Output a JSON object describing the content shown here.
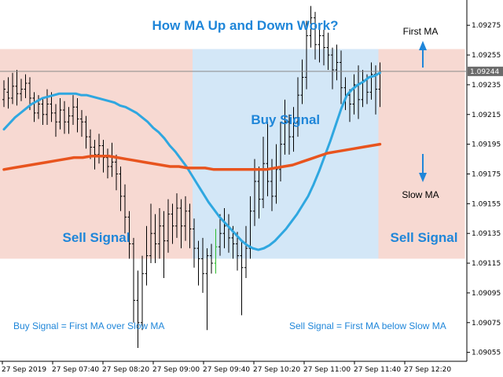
{
  "chart_data": {
    "type": "candlestick",
    "title": "How MA Up and Down Work?",
    "y_ticks": [
      "1.09275",
      "1.09255",
      "1.09235",
      "1.09215",
      "1.09195",
      "1.09175",
      "1.09155",
      "1.09135",
      "1.09115",
      "1.09095",
      "1.09075",
      "1.09055"
    ],
    "y_tick_values": [
      1.09275,
      1.09255,
      1.09235,
      1.09215,
      1.09195,
      1.09175,
      1.09155,
      1.09135,
      1.09115,
      1.09095,
      1.09075,
      1.09055
    ],
    "ylim": [
      1.09049,
      1.09292
    ],
    "x_ticks": [
      "27 Sep 2019",
      "27 Sep 07:40",
      "27 Sep 08:20",
      "27 Sep 09:00",
      "27 Sep 09:40",
      "27 Sep 10:20",
      "27 Sep 11:00",
      "27 Sep 11:40",
      "27 Sep 12:20"
    ],
    "current_price": "1.09244",
    "zones": [
      {
        "label": "Sell Signal",
        "type": "sell",
        "from_bar": 0,
        "to_bar": 44
      },
      {
        "label": "Buy Signal",
        "type": "buy",
        "from_bar": 44,
        "to_bar": 87
      },
      {
        "label": "Sell Signal",
        "type": "sell",
        "from_bar": 87,
        "to_bar": 107
      }
    ],
    "zone_price_range": [
      1.09118,
      1.09259
    ],
    "series": [
      {
        "name": "First MA",
        "color": "#2fa7e0",
        "values": [
          1.09205,
          1.09209,
          1.09213,
          1.09216,
          1.09219,
          1.09222,
          1.09224,
          1.09226,
          1.09227,
          1.09228,
          1.09229,
          1.09229,
          1.09229,
          1.09229,
          1.09228,
          1.09228,
          1.09227,
          1.09226,
          1.09225,
          1.09224,
          1.09223,
          1.09221,
          1.0922,
          1.09218,
          1.09216,
          1.09213,
          1.0921,
          1.09206,
          1.09203,
          1.09199,
          1.09194,
          1.0919,
          1.09185,
          1.0918,
          1.09174,
          1.09168,
          1.09162,
          1.09156,
          1.09151,
          1.09146,
          1.09142,
          1.09138,
          1.09134,
          1.0913,
          1.09127,
          1.09125,
          1.09124,
          1.09125,
          1.09127,
          1.0913,
          1.09134,
          1.09138,
          1.09143,
          1.09148,
          1.09154,
          1.0916,
          1.09168,
          1.09177,
          1.09187,
          1.09197,
          1.09208,
          1.09219,
          1.09228,
          1.09232,
          1.09235,
          1.09237,
          1.0924,
          1.09241,
          1.09243
        ]
      },
      {
        "name": "Slow MA",
        "color": "#e8541e",
        "values": [
          1.09178,
          1.09179,
          1.0918,
          1.09181,
          1.09182,
          1.09183,
          1.09184,
          1.09185,
          1.09186,
          1.09186,
          1.09187,
          1.09187,
          1.09187,
          1.09186,
          1.09185,
          1.09184,
          1.09183,
          1.09182,
          1.09181,
          1.0918,
          1.0918,
          1.09179,
          1.09179,
          1.09179,
          1.09178,
          1.09178,
          1.09178,
          1.09178,
          1.09178,
          1.09178,
          1.09178,
          1.09179,
          1.0918,
          1.09181,
          1.09183,
          1.09185,
          1.09187,
          1.09189,
          1.0919,
          1.09191,
          1.09192,
          1.09193,
          1.09194,
          1.09195
        ]
      }
    ],
    "candles": [
      [
        1.09225,
        1.09232,
        1.0922,
        1.09238
      ],
      [
        1.0923,
        1.09226,
        1.09219,
        1.0924
      ],
      [
        1.09226,
        1.09234,
        1.09222,
        1.09243
      ],
      [
        1.09234,
        1.09229,
        1.09221,
        1.09245
      ],
      [
        1.09229,
        1.09232,
        1.09224,
        1.09239
      ],
      [
        1.09232,
        1.09236,
        1.09226,
        1.09242
      ],
      [
        1.09236,
        1.09226,
        1.09218,
        1.0924
      ],
      [
        1.09226,
        1.09216,
        1.0921,
        1.0923
      ],
      [
        1.09216,
        1.09222,
        1.09212,
        1.09228
      ],
      [
        1.09222,
        1.09215,
        1.09208,
        1.09226
      ],
      [
        1.09215,
        1.09222,
        1.09208,
        1.09232
      ],
      [
        1.09222,
        1.09216,
        1.0921,
        1.0923
      ],
      [
        1.09216,
        1.0921,
        1.092,
        1.09222
      ],
      [
        1.0921,
        1.09218,
        1.09205,
        1.09226
      ],
      [
        1.09218,
        1.0921,
        1.09202,
        1.09224
      ],
      [
        1.0921,
        1.09214,
        1.09202,
        1.0922
      ],
      [
        1.09214,
        1.0922,
        1.09208,
        1.09228
      ],
      [
        1.0922,
        1.09212,
        1.09203,
        1.09226
      ],
      [
        1.09212,
        1.0921,
        1.092,
        1.09218
      ],
      [
        1.0921,
        1.092,
        1.09192,
        1.09214
      ],
      [
        1.092,
        1.09193,
        1.09185,
        1.09205
      ],
      [
        1.09193,
        1.09188,
        1.09178,
        1.09198
      ],
      [
        1.09188,
        1.09194,
        1.09182,
        1.09202
      ],
      [
        1.09194,
        1.09186,
        1.09176,
        1.09198
      ],
      [
        1.09186,
        1.0918,
        1.09172,
        1.09192
      ],
      [
        1.0918,
        1.09183,
        1.09173,
        1.09196
      ],
      [
        1.09183,
        1.09175,
        1.09164,
        1.09188
      ],
      [
        1.09175,
        1.0916,
        1.0915,
        1.0918
      ],
      [
        1.0916,
        1.09146,
        1.09135,
        1.09168
      ],
      [
        1.09146,
        1.09128,
        1.09118,
        1.0915
      ],
      [
        1.09128,
        1.0909,
        1.09075,
        1.09132
      ],
      [
        1.0909,
        1.09075,
        1.09058,
        1.0911
      ],
      [
        1.09075,
        1.09108,
        1.0907,
        1.0912
      ],
      [
        1.09108,
        1.0912,
        1.091,
        1.0914
      ],
      [
        1.0912,
        1.09135,
        1.09115,
        1.09155
      ],
      [
        1.09135,
        1.09128,
        1.09115,
        1.09148
      ],
      [
        1.09128,
        1.0914,
        1.09118,
        1.09152
      ],
      [
        1.0914,
        1.0913,
        1.09105,
        1.0915
      ],
      [
        1.0913,
        1.09148,
        1.09122,
        1.09158
      ],
      [
        1.09148,
        1.0914,
        1.09128,
        1.09155
      ],
      [
        1.0914,
        1.09152,
        1.09132,
        1.09162
      ],
      [
        1.09152,
        1.0914,
        1.09125,
        1.09158
      ],
      [
        1.0914,
        1.0915,
        1.0913,
        1.0916
      ],
      [
        1.0915,
        1.09138,
        1.09125,
        1.09155
      ],
      [
        1.09138,
        1.09125,
        1.09112,
        1.09145
      ],
      [
        1.09125,
        1.09118,
        1.091,
        1.0913
      ],
      [
        1.09118,
        1.09108,
        1.09095,
        1.09132
      ],
      [
        1.09108,
        1.0912,
        1.0907,
        1.09125
      ],
      [
        1.0912,
        1.09115,
        1.09108,
        1.09128
      ],
      [
        1.09115,
        1.09126,
        1.09108,
        1.09138
      ],
      [
        1.09126,
        1.09135,
        1.0912,
        1.09148
      ],
      [
        1.09135,
        1.0914,
        1.09125,
        1.09152
      ],
      [
        1.0914,
        1.09132,
        1.09122,
        1.09148
      ],
      [
        1.09132,
        1.09128,
        1.09118,
        1.0914
      ],
      [
        1.09128,
        1.0912,
        1.0911,
        1.09136
      ],
      [
        1.0912,
        1.09112,
        1.0908,
        1.0913
      ],
      [
        1.09112,
        1.09125,
        1.09105,
        1.0914
      ],
      [
        1.09125,
        1.0915,
        1.09118,
        1.0916
      ],
      [
        1.0915,
        1.0917,
        1.0914,
        1.09185
      ],
      [
        1.0917,
        1.09158,
        1.09145,
        1.0918
      ],
      [
        1.09158,
        1.09182,
        1.09152,
        1.092
      ],
      [
        1.09182,
        1.0917,
        1.0916,
        1.0921
      ],
      [
        1.0917,
        1.0916,
        1.0915,
        1.09185
      ],
      [
        1.0916,
        1.09178,
        1.09155,
        1.09195
      ],
      [
        1.09178,
        1.09195,
        1.0917,
        1.0921
      ],
      [
        1.09195,
        1.0921,
        1.09188,
        1.09225
      ],
      [
        1.0921,
        1.092,
        1.09188,
        1.09215
      ],
      [
        1.092,
        1.0921,
        1.0919,
        1.0922
      ],
      [
        1.0921,
        1.09228,
        1.092,
        1.0924
      ],
      [
        1.09228,
        1.0924,
        1.09222,
        1.09252
      ],
      [
        1.0924,
        1.09268,
        1.09232,
        1.09278
      ],
      [
        1.09268,
        1.0928,
        1.0926,
        1.09288
      ],
      [
        1.0928,
        1.09262,
        1.09252,
        1.09284
      ],
      [
        1.09262,
        1.09268,
        1.0925,
        1.09276
      ],
      [
        1.09268,
        1.0926,
        1.09248,
        1.09272
      ],
      [
        1.0926,
        1.09255,
        1.09245,
        1.0927
      ],
      [
        1.09255,
        1.09245,
        1.09232,
        1.0926
      ],
      [
        1.09245,
        1.0925,
        1.09238,
        1.09262
      ],
      [
        1.0925,
        1.09233,
        1.09222,
        1.09258
      ],
      [
        1.09233,
        1.09228,
        1.09218,
        1.0924
      ],
      [
        1.09228,
        1.09222,
        1.0921,
        1.09232
      ],
      [
        1.09222,
        1.09235,
        1.09215,
        1.09242
      ],
      [
        1.09235,
        1.09225,
        1.09212,
        1.09248
      ],
      [
        1.09225,
        1.09238,
        1.0922,
        1.09245
      ],
      [
        1.09238,
        1.0923,
        1.09222,
        1.09242
      ],
      [
        1.0923,
        1.09242,
        1.09225,
        1.0925
      ],
      [
        1.09242,
        1.09232,
        1.09215,
        1.09248
      ],
      [
        1.09232,
        1.09244,
        1.0922,
        1.0925
      ]
    ],
    "annotations": {
      "first_ma_label": "First MA",
      "slow_ma_label": "Slow MA",
      "buy_rule": "Buy Signal = First MA over Slow MA",
      "sell_rule": "Sell Signal = First MA below Slow MA"
    },
    "colors": {
      "sell_zone": "#f7d9d2",
      "buy_zone": "#d3e7f7",
      "text_accent": "#1f86d9",
      "first_ma": "#2fa7e0",
      "slow_ma": "#e8541e",
      "price_tag": "#6b6b6b",
      "candle": "#000000",
      "bull_candle_accent": "#2dbb2d"
    }
  }
}
